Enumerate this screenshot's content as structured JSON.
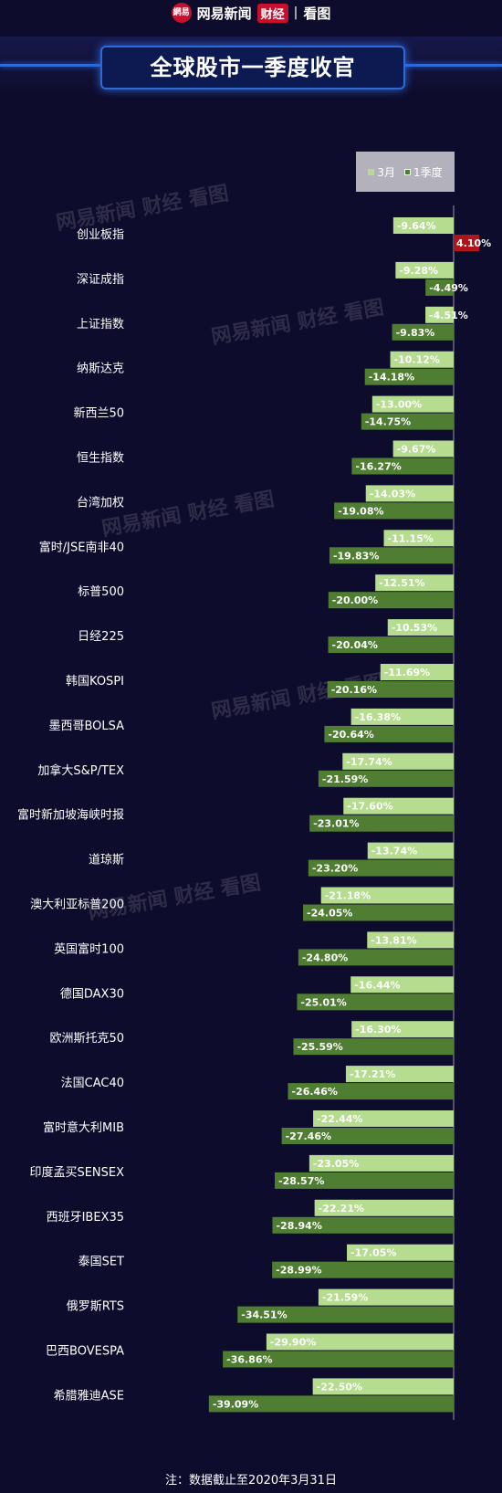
{
  "header": {
    "logo_text": "網易",
    "brand": "网易新闻",
    "tag": "财经",
    "separator": "|",
    "sub": "看图"
  },
  "page_title": "全球股市一季度收官",
  "watermark_text": "网易新闻 财经 看图",
  "footnote": "注：数据截止至2020年3月31日",
  "colors": {
    "background": "#0e0c2c",
    "march": "#b5dc8f",
    "quarter": "#4f7d31",
    "positive": "#b0151b",
    "title_frame": "#2d6ad8"
  },
  "chart_data": {
    "type": "bar",
    "orientation": "horizontal",
    "legend_position": "top-right",
    "series": [
      {
        "name": "3月",
        "color": "#b5dc8f"
      },
      {
        "name": "1季度",
        "color": "#4f7d31"
      }
    ],
    "categories": [
      "创业板指",
      "深证成指",
      "上证指数",
      "纳斯达克",
      "新西兰50",
      "恒生指数",
      "台湾加权",
      "富时/JSE南非40",
      "标普500",
      "日经225",
      "韩国KOSPI",
      "墨西哥BOLSA",
      "加拿大S&P/TEX",
      "富时新加坡海峡时报",
      "道琼斯",
      "澳大利亚标普200",
      "英国富时100",
      "德国DAX30",
      "欧洲斯托克50",
      "法国CAC40",
      "富时意大利MIB",
      "印度孟买SENSEX",
      "西班牙IBEX35",
      "泰国SET",
      "俄罗斯RTS",
      "巴西BOVESPA",
      "希腊雅迪ASE"
    ],
    "march": [
      -9.64,
      -9.28,
      -4.51,
      -10.12,
      -13.0,
      -9.67,
      -14.03,
      -11.15,
      -12.51,
      -10.53,
      -11.69,
      -16.38,
      -17.74,
      -17.6,
      -13.74,
      -21.18,
      -13.81,
      -16.44,
      -16.3,
      -17.21,
      -22.44,
      -23.05,
      -22.21,
      -17.05,
      -21.59,
      -29.9,
      -22.5
    ],
    "quarter": [
      4.1,
      -4.49,
      -9.83,
      -14.18,
      -14.75,
      -16.27,
      -19.08,
      -19.83,
      -20.0,
      -20.04,
      -20.16,
      -20.64,
      -21.59,
      -23.01,
      -23.2,
      -24.05,
      -24.8,
      -25.01,
      -25.59,
      -26.46,
      -27.46,
      -28.57,
      -28.94,
      -28.99,
      -34.51,
      -36.86,
      -39.09
    ],
    "march_labels": [
      "-9.64%",
      "-9.28%",
      "-4.51%",
      "-10.12%",
      "-13.00%",
      "-9.67%",
      "-14.03%",
      "-11.15%",
      "-12.51%",
      "-10.53%",
      "-11.69%",
      "-16.38%",
      "-17.74%",
      "-17.60%",
      "-13.74%",
      "-21.18%",
      "-13.81%",
      "-16.44%",
      "-16.30%",
      "-17.21%",
      "-22.44%",
      "-23.05%",
      "-22.21%",
      "-17.05%",
      "-21.59%",
      "-29.90%",
      "-22.50%"
    ],
    "quarter_labels": [
      "4.10%",
      "-4.49%",
      "-9.83%",
      "-14.18%",
      "-14.75%",
      "-16.27%",
      "-19.08%",
      "-19.83%",
      "-20.00%",
      "-20.04%",
      "-20.16%",
      "-20.64%",
      "-21.59%",
      "-23.01%",
      "-23.20%",
      "-24.05%",
      "-24.80%",
      "-25.01%",
      "-25.59%",
      "-26.46%",
      "-27.46%",
      "-28.57%",
      "-28.94%",
      "-28.99%",
      "-34.51%",
      "-36.86%",
      "-39.09%"
    ]
  }
}
